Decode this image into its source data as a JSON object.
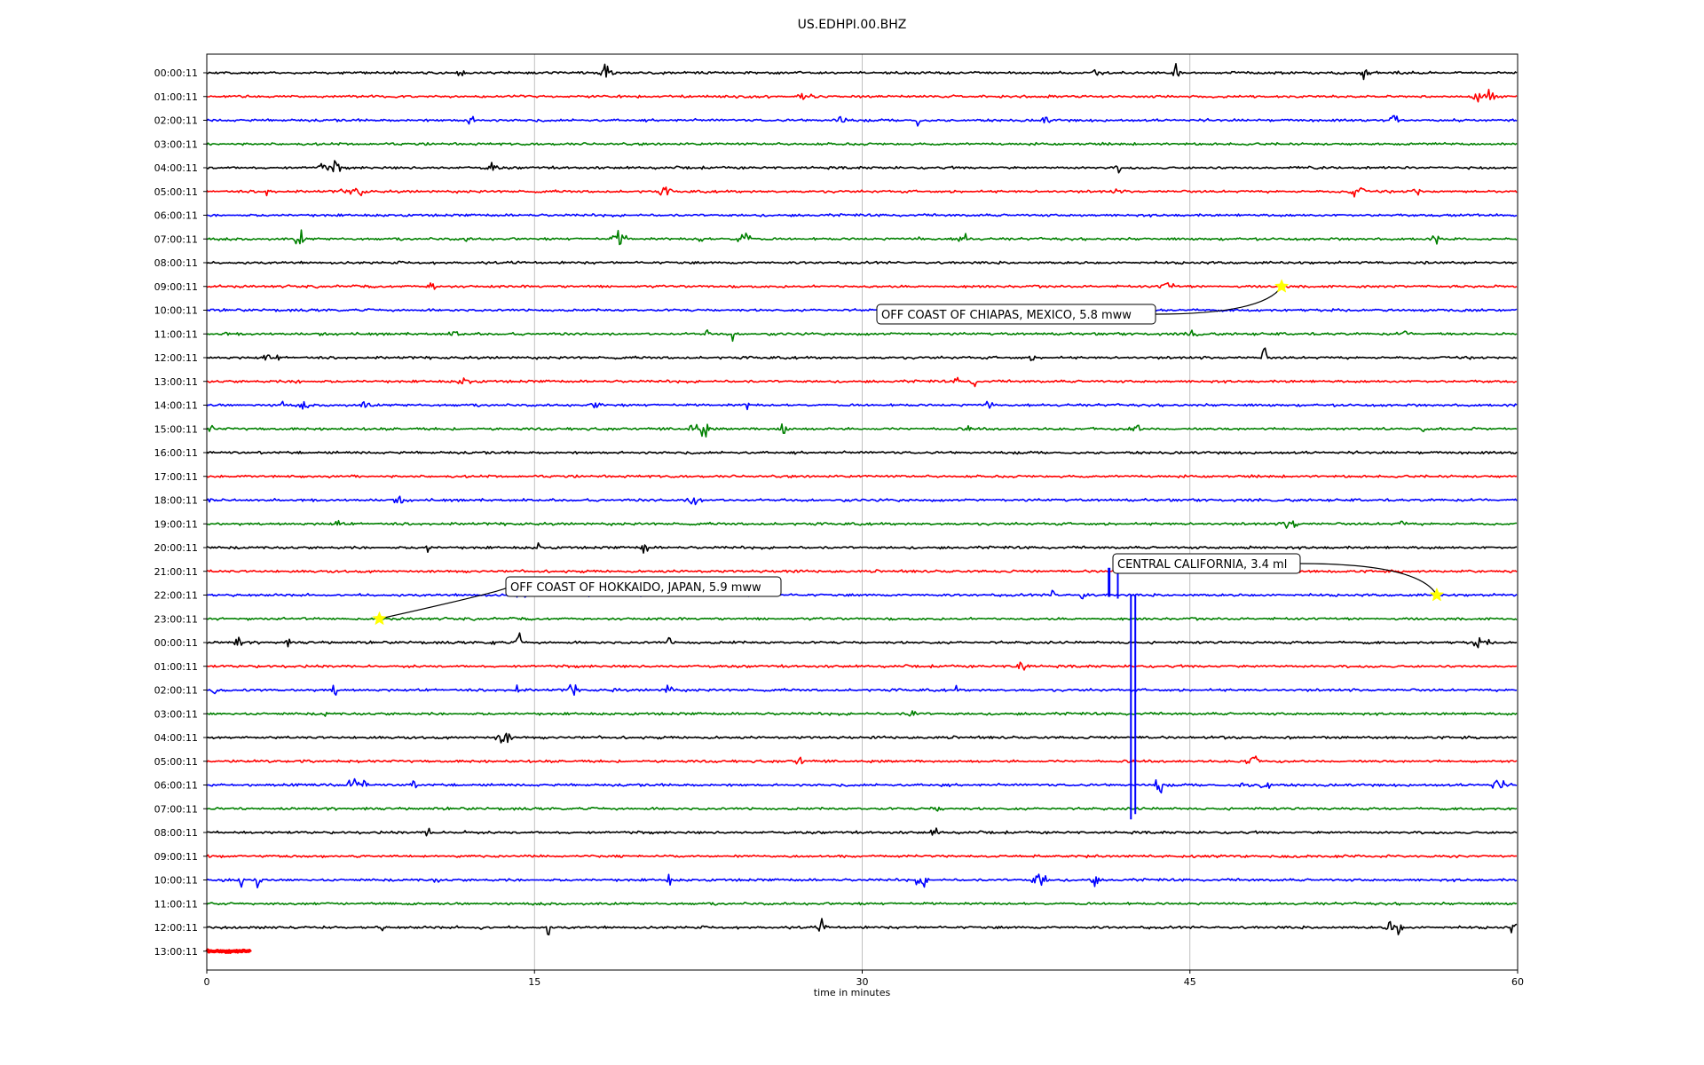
{
  "chart_data": {
    "type": "line",
    "title": "US.EDHPI.00.BHZ",
    "xlabel": "time in minutes",
    "ylabel": "",
    "xlim": [
      0,
      60
    ],
    "xticks": [
      "0",
      "15",
      "30",
      "45",
      "60"
    ],
    "grid": "vertical gridlines at x ticks",
    "row_labels": [
      "00:00:11",
      "01:00:11",
      "02:00:11",
      "03:00:11",
      "04:00:11",
      "05:00:11",
      "06:00:11",
      "07:00:11",
      "08:00:11",
      "09:00:11",
      "10:00:11",
      "11:00:11",
      "12:00:11",
      "13:00:11",
      "14:00:11",
      "15:00:11",
      "16:00:11",
      "17:00:11",
      "18:00:11",
      "19:00:11",
      "20:00:11",
      "21:00:11",
      "22:00:11",
      "23:00:11",
      "00:00:11",
      "01:00:11",
      "02:00:11",
      "03:00:11",
      "04:00:11",
      "05:00:11",
      "06:00:11",
      "07:00:11",
      "08:00:11",
      "09:00:11",
      "10:00:11",
      "11:00:11",
      "12:00:11",
      "13:00:11"
    ],
    "trace_colors": [
      "#000000",
      "#ff0000",
      "#0000ff",
      "#008000"
    ],
    "last_trace_end_minute": 2.0,
    "events": [
      {
        "label": "OFF COAST OF CHIAPAS, MEXICO, 5.8 mww",
        "row": 9,
        "minute": 49.2
      },
      {
        "label": "CENTRAL CALIFORNIA, 3.4 ml",
        "row": 22,
        "minute": 56.3
      },
      {
        "label": "OFF COAST OF HOKKAIDO, JAPAN, 5.9 mww",
        "row": 23,
        "minute": 7.9
      }
    ],
    "marker_color": "#ffff00"
  }
}
